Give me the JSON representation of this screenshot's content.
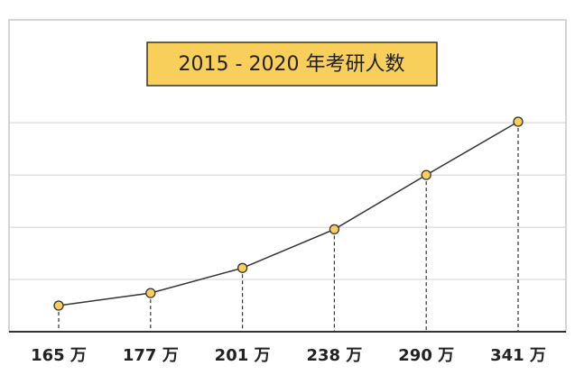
{
  "chart_data": {
    "type": "line",
    "title": "2015 - 2020 年考研人数",
    "values": [
      165,
      177,
      201,
      238,
      290,
      341
    ],
    "value_labels": [
      "165 万",
      "177 万",
      "201 万",
      "238 万",
      "290 万",
      "341 万"
    ],
    "color": "#333333",
    "marker_color": "#f7cf5a",
    "ylim": [
      140,
      360
    ],
    "yticks": [
      190,
      240,
      290,
      340
    ],
    "grid": true
  }
}
